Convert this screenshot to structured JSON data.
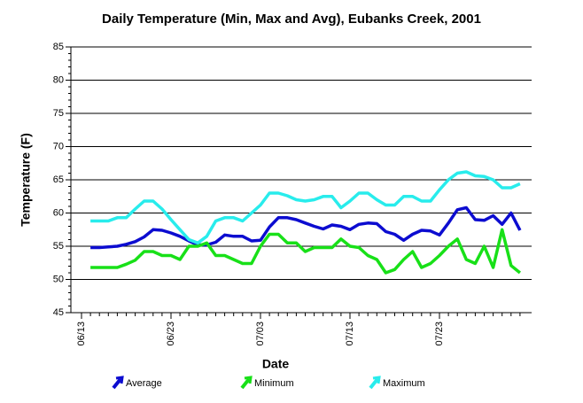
{
  "chart_data": {
    "type": "line",
    "title": "Daily Temperature (Min, Max and Avg), Eubanks Creek, 2001",
    "xlabel": "Date",
    "ylabel": "Temperature (F)",
    "categories": [
      "06/13",
      null,
      null,
      null,
      null,
      null,
      null,
      null,
      null,
      null,
      "06/23",
      null,
      null,
      null,
      null,
      null,
      null,
      null,
      null,
      null,
      "07/03",
      null,
      null,
      null,
      null,
      null,
      null,
      null,
      null,
      null,
      "07/13",
      null,
      null,
      null,
      null,
      null,
      null,
      null,
      null,
      null,
      "07/23",
      null,
      null,
      null,
      null,
      null,
      null,
      null,
      null,
      null
    ],
    "series": [
      {
        "name": "Average",
        "color": "#0c0cd0",
        "values": [
          null,
          54.8,
          54.8,
          54.9,
          55.0,
          55.3,
          55.7,
          56.4,
          57.5,
          57.4,
          57.0,
          56.5,
          55.8,
          55.2,
          55.2,
          55.6,
          56.7,
          56.5,
          56.5,
          55.8,
          55.9,
          57.9,
          59.3,
          59.3,
          59.0,
          58.5,
          58.0,
          57.6,
          58.2,
          58.0,
          57.5,
          58.3,
          58.5,
          58.4,
          57.2,
          56.8,
          55.9,
          56.8,
          57.4,
          57.3,
          56.7,
          58.5,
          60.5,
          60.8,
          59.0,
          58.9,
          59.6,
          58.3,
          60.0,
          57.4
        ]
      },
      {
        "name": "Minimum",
        "color": "#18e018",
        "values": [
          null,
          51.8,
          51.8,
          51.8,
          51.8,
          52.3,
          52.9,
          54.2,
          54.2,
          53.6,
          53.6,
          53.0,
          55.0,
          55.0,
          55.5,
          53.6,
          53.6,
          53.0,
          52.4,
          52.4,
          55.0,
          56.8,
          56.8,
          55.5,
          55.5,
          54.2,
          54.8,
          54.8,
          54.8,
          56.1,
          55.0,
          54.8,
          53.6,
          53.0,
          51.0,
          51.5,
          53.0,
          54.2,
          51.8,
          52.4,
          53.6,
          55.0,
          56.1,
          53.0,
          52.4,
          55.0,
          51.8,
          57.5,
          52.1,
          51.0
        ]
      },
      {
        "name": "Maximum",
        "color": "#28ecec",
        "values": [
          null,
          58.8,
          58.8,
          58.8,
          59.3,
          59.3,
          60.6,
          61.8,
          61.8,
          60.6,
          59.0,
          57.5,
          56.0,
          55.5,
          56.5,
          58.8,
          59.3,
          59.3,
          58.8,
          60.0,
          61.2,
          63.0,
          63.0,
          62.6,
          62.0,
          61.8,
          62.0,
          62.5,
          62.5,
          60.8,
          61.8,
          63.0,
          63.0,
          62.0,
          61.2,
          61.2,
          62.5,
          62.5,
          61.8,
          61.8,
          63.5,
          65.0,
          66.0,
          66.2,
          65.6,
          65.5,
          65.0,
          63.8,
          63.8,
          64.4
        ]
      }
    ],
    "ylim": [
      45,
      85
    ],
    "yticks": [
      45,
      50,
      55,
      60,
      65,
      70,
      75,
      80,
      85
    ],
    "grid": true,
    "legend": "bottom"
  }
}
